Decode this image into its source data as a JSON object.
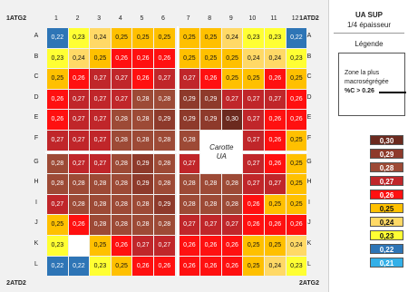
{
  "labels": {
    "top_left": "1ATG2",
    "top_right": "1ATD2",
    "bottom_left": "2ATD2",
    "bottom_right": "2ATG2",
    "carotte_line1": "Carotte",
    "carotte_line2": "UA"
  },
  "columns": [
    "1",
    "2",
    "3",
    "4",
    "5",
    "6",
    "7",
    "8",
    "9",
    "10",
    "11",
    "12"
  ],
  "rows": [
    "A",
    "B",
    "C",
    "D",
    "E",
    "F",
    "G",
    "H",
    "I",
    "J",
    "K",
    "L"
  ],
  "legend": {
    "title": "UA SUP",
    "subtitle": "1/4 épaisseur",
    "legend_label": "Légende",
    "zone_line1": "Zone la plus",
    "zone_line2": "macroségrégée",
    "zone_line3": "%C > 0.26",
    "swatches": [
      {
        "label": "0,30",
        "color": "#6b2a1f"
      },
      {
        "label": "0,29",
        "color": "#8e3a2b"
      },
      {
        "label": "0,28",
        "color": "#9d4a36"
      },
      {
        "label": "0,27",
        "color": "#c0262a"
      },
      {
        "label": "0,26",
        "color": "#ff1010"
      },
      {
        "label": "0,25",
        "color": "#ffc000"
      },
      {
        "label": "0,24",
        "color": "#ffd966"
      },
      {
        "label": "0,23",
        "color": "#ffff33"
      },
      {
        "label": "0,22",
        "color": "#2e75b6"
      },
      {
        "label": "0,21",
        "color": "#33b0e8"
      }
    ]
  },
  "chart_data": {
    "type": "heatmap",
    "title": "UA SUP",
    "subtitle": "1/4 épaisseur",
    "x_categories": [
      "1",
      "2",
      "3",
      "4",
      "5",
      "6",
      "7",
      "8",
      "9",
      "10",
      "11",
      "12"
    ],
    "y_categories": [
      "A",
      "B",
      "C",
      "D",
      "E",
      "F",
      "G",
      "H",
      "I",
      "J",
      "K",
      "L"
    ],
    "values": [
      [
        "0,22",
        "0,23",
        "0,24",
        "0,25",
        "0,25",
        "0,25",
        "0,25",
        "0,25",
        "0,24",
        "0,23",
        "0,23",
        "0,22"
      ],
      [
        "0,23",
        "0,24",
        "0,25",
        "0,26",
        "0,26",
        "0,26",
        "0,25",
        "0,25",
        "0,25",
        "0,24",
        "0,24",
        "0,23"
      ],
      [
        "0,25",
        "0,26",
        "0,27",
        "0,27",
        "0,26",
        "0,27",
        "0,27",
        "0,26",
        "0,25",
        "0,25",
        "0,26",
        "0,25"
      ],
      [
        "0,26",
        "0,27",
        "0,27",
        "0,27",
        "0,28",
        "0,28",
        "0,29",
        "0,29",
        "0,27",
        "0,27",
        "0,27",
        "0,26"
      ],
      [
        "0,26",
        "0,27",
        "0,27",
        "0,28",
        "0,28",
        "0,29",
        "0,29",
        "0,29",
        "0,30",
        "0,27",
        "0,26",
        "0,26"
      ],
      [
        "0,27",
        "0,27",
        "0,27",
        "0,28",
        "0,28",
        "0,28",
        "0,28",
        "",
        "",
        "0,27",
        "0,26",
        "0,25"
      ],
      [
        "0,28",
        "0,27",
        "0,27",
        "0,28",
        "0,29",
        "0,28",
        "0,27",
        "",
        "",
        "0,27",
        "0,26",
        "0,25"
      ],
      [
        "0,28",
        "0,28",
        "0,28",
        "0,28",
        "0,29",
        "0,28",
        "0,28",
        "0,28",
        "0,28",
        "0,27",
        "0,27",
        "0,25"
      ],
      [
        "0,27",
        "0,28",
        "0,28",
        "0,28",
        "0,28",
        "0,29",
        "0,28",
        "0,28",
        "0,28",
        "0,26",
        "0,25",
        "0,25"
      ],
      [
        "0,25",
        "0,26",
        "0,28",
        "0,28",
        "0,28",
        "0,28",
        "0,27",
        "0,27",
        "0,27",
        "0,26",
        "0,26",
        "0,26"
      ],
      [
        "0,23",
        "",
        "0,25",
        "0,26",
        "0,27",
        "0,27",
        "0,26",
        "0,26",
        "0,26",
        "0,25",
        "0,25",
        "0,24"
      ],
      [
        "0,22",
        "0,22",
        "0,23",
        "0,25",
        "0,26",
        "0,26",
        "0,26",
        "0,26",
        "0,26",
        "0,25",
        "0,24",
        "0,23"
      ]
    ],
    "color_map": {
      "0,30": "#6b2a1f",
      "0,29": "#8e3a2b",
      "0,28": "#9d4a36",
      "0,27": "#c0262a",
      "0,26": "#ff1010",
      "0,25": "#ffc000",
      "0,24": "#ffd966",
      "0,23": "#ffff33",
      "0,22": "#2e75b6",
      "0,21": "#33b0e8"
    }
  }
}
